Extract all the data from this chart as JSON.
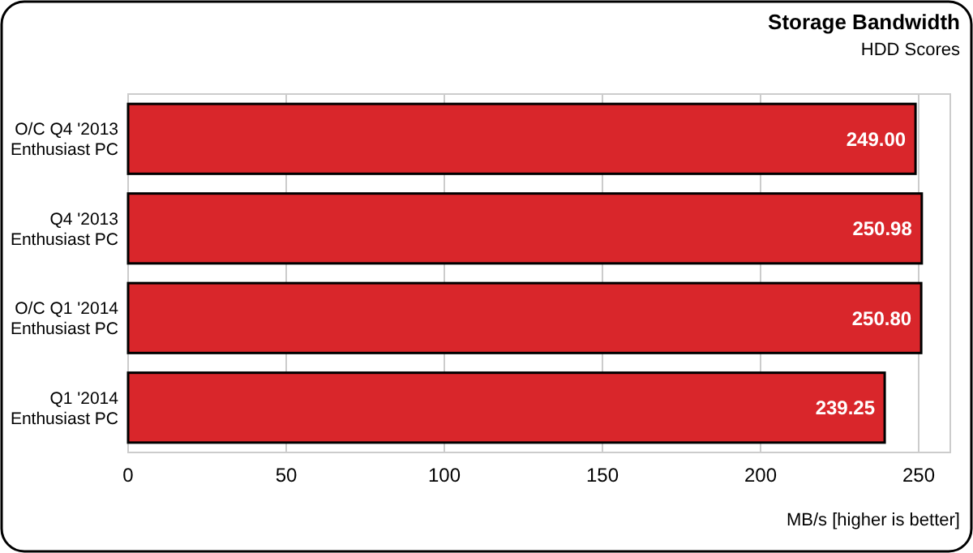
{
  "chart_data": {
    "type": "bar",
    "orientation": "horizontal",
    "title": "Storage Bandwidth",
    "subtitle": "HDD Scores",
    "xlabel": "MB/s [higher is better]",
    "categories": [
      "O/C Q4 '2013\nEnthusiast PC",
      "Q4 '2013\nEnthusiast PC",
      "O/C Q1 '2014\nEnthusiast PC",
      "Q1 '2014\nEnthusiast PC"
    ],
    "values": [
      249.0,
      250.98,
      250.8,
      239.25
    ],
    "color": "#d9262b",
    "data_labels": true,
    "value_labels": [
      "249.00",
      "250.98",
      "250.80",
      "239.25"
    ],
    "xlim": [
      0,
      260
    ],
    "xticks": [
      0,
      50,
      100,
      150,
      200,
      250
    ],
    "grid": "x"
  }
}
